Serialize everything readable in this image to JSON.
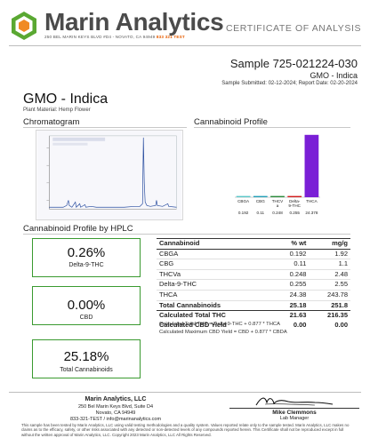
{
  "header": {
    "brand": "Marin Analytics",
    "address_line": "250 BEL MARIN KEYS BLVD #D4 - NOVATO, CA 94949",
    "phone": "833 321 TEST",
    "doc_type": "CERTIFICATE OF ANALYSIS"
  },
  "sample": {
    "id": "Sample 725-021224-030",
    "name": "GMO - Indica",
    "dates": "Sample Submitted: 02-12-2024;  Report Date: 02-20-2024"
  },
  "product": {
    "title": "GMO - Indica",
    "plant_material": "Plant Material: Hemp Flower"
  },
  "sections": {
    "chromatogram": "Chromatogram",
    "profile": "Cannabinoid Profile",
    "hplc": "Cannabinoid Profile by HPLC"
  },
  "chart_data": {
    "type": "bar",
    "categories": [
      "CBGA",
      "CBG",
      "THCVa",
      "Delta-9-THC",
      "THCA"
    ],
    "tick_labels": [
      "CBGA",
      "CBG",
      "THCV\na",
      "Delta-\n9-THC",
      "THCA"
    ],
    "values": [
      0.192,
      0.11,
      0.248,
      0.255,
      24.378
    ],
    "value_labels": [
      "0.192",
      "0.11",
      "0.248",
      "0.255",
      "24.378"
    ],
    "colors": [
      "#5bc8c9",
      "#23a0b8",
      "#2a8a3a",
      "#d21a1a",
      "#7a1fd6"
    ],
    "ylim": [
      0,
      25
    ],
    "title": "",
    "xlabel": "",
    "ylabel": "",
    "grid": false
  },
  "summary": [
    {
      "value": "0.26%",
      "label": "Delta-9-THC"
    },
    {
      "value": "0.00%",
      "label": "CBD"
    },
    {
      "value": "25.18%",
      "label": "Total Cannabinoids"
    }
  ],
  "table": {
    "headers": [
      "Cannabinoid",
      "% wt",
      "mg/g"
    ],
    "rows": [
      [
        "CBGA",
        "0.192",
        "1.92"
      ],
      [
        "CBG",
        "0.11",
        "1.1"
      ],
      [
        "THCVa",
        "0.248",
        "2.48"
      ],
      [
        "Delta-9-THC",
        "0.255",
        "2.55"
      ],
      [
        "THCA",
        "24.38",
        "243.78"
      ]
    ],
    "total": [
      "Total Cannabinoids",
      "25.18",
      "251.8"
    ],
    "calc": [
      [
        "Calculated Total THC",
        "21.63",
        "216.35"
      ],
      [
        "Calculated CBD Yield",
        "0.00",
        "0.00"
      ]
    ],
    "notes": [
      "Calculated Total THC = Delta-9-THC + 0.877 * THCA",
      "Calculated Maximum CBD Yield = CBD + 0.877 * CBDA"
    ]
  },
  "footer": {
    "company": "Marin Analytics, LLC",
    "address1": "250 Bel Marin Keys Blvd, Suite D4",
    "address2": "Novato, CA 94949",
    "contact": "833-321-TEST / info@marinanalytics.com",
    "signer_name": "Mike Clemmons",
    "signer_title": "Lab Manager",
    "disclaimer": "This sample has been tested by Marin Analytics, LLC using valid testing methodologies and a quality system. Values reported relate only to the sample tested. Marin Analytics, LLC makes no claims as to the efficacy, safety, or other risks associated with any detected or non-detected levels of any compounds reported herein. This Certificate shall not be reproduced except in full without the written approval of Marin Analytics, LLC.    Copyright 2023 Marin Analytics, LLC All Rights Reserved."
  }
}
